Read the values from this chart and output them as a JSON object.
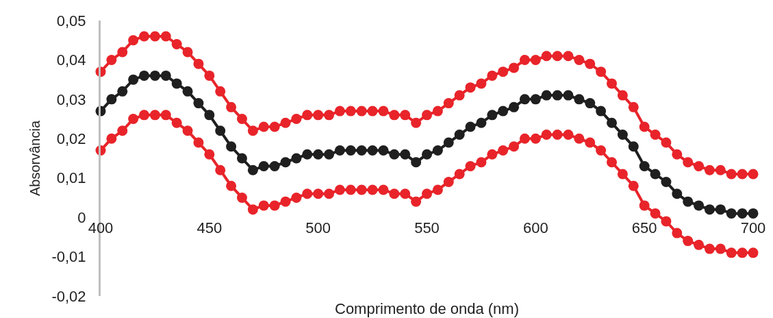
{
  "chart_data": {
    "type": "line",
    "xlabel": "Comprimento de onda (nm)",
    "ylabel": "Absorvância",
    "x": [
      400,
      405,
      410,
      415,
      420,
      425,
      430,
      435,
      440,
      445,
      450,
      455,
      460,
      465,
      470,
      475,
      480,
      485,
      490,
      495,
      500,
      505,
      510,
      515,
      520,
      525,
      530,
      535,
      540,
      545,
      550,
      555,
      560,
      565,
      570,
      575,
      580,
      585,
      590,
      595,
      600,
      605,
      610,
      615,
      620,
      625,
      630,
      635,
      640,
      645,
      650,
      655,
      660,
      665,
      670,
      675,
      680,
      685,
      690,
      695,
      700
    ],
    "series": [
      {
        "color": "#e8242a",
        "values": [
          0.037,
          0.04,
          0.042,
          0.045,
          0.046,
          0.046,
          0.046,
          0.044,
          0.042,
          0.039,
          0.036,
          0.032,
          0.028,
          0.025,
          0.022,
          0.023,
          0.023,
          0.024,
          0.025,
          0.026,
          0.026,
          0.026,
          0.027,
          0.027,
          0.027,
          0.027,
          0.027,
          0.026,
          0.026,
          0.024,
          0.026,
          0.027,
          0.029,
          0.031,
          0.033,
          0.034,
          0.036,
          0.037,
          0.038,
          0.04,
          0.04,
          0.041,
          0.041,
          0.041,
          0.04,
          0.039,
          0.037,
          0.034,
          0.031,
          0.028,
          0.023,
          0.021,
          0.019,
          0.016,
          0.014,
          0.013,
          0.012,
          0.012,
          0.011,
          0.011,
          0.011
        ]
      },
      {
        "color": "#1f1f1f",
        "values": [
          0.027,
          0.03,
          0.032,
          0.035,
          0.036,
          0.036,
          0.036,
          0.034,
          0.032,
          0.029,
          0.026,
          0.022,
          0.018,
          0.015,
          0.012,
          0.013,
          0.013,
          0.014,
          0.015,
          0.016,
          0.016,
          0.016,
          0.017,
          0.017,
          0.017,
          0.017,
          0.017,
          0.016,
          0.016,
          0.014,
          0.016,
          0.017,
          0.019,
          0.021,
          0.023,
          0.024,
          0.026,
          0.027,
          0.028,
          0.03,
          0.03,
          0.031,
          0.031,
          0.031,
          0.03,
          0.029,
          0.027,
          0.024,
          0.021,
          0.018,
          0.013,
          0.011,
          0.009,
          0.006,
          0.004,
          0.003,
          0.002,
          0.002,
          0.001,
          0.001,
          0.001
        ]
      },
      {
        "color": "#e8242a",
        "values": [
          0.017,
          0.02,
          0.022,
          0.025,
          0.026,
          0.026,
          0.026,
          0.024,
          0.022,
          0.019,
          0.016,
          0.012,
          0.008,
          0.005,
          0.002,
          0.003,
          0.003,
          0.004,
          0.005,
          0.006,
          0.006,
          0.006,
          0.007,
          0.007,
          0.007,
          0.007,
          0.007,
          0.006,
          0.006,
          0.004,
          0.006,
          0.007,
          0.009,
          0.011,
          0.013,
          0.014,
          0.016,
          0.017,
          0.018,
          0.02,
          0.02,
          0.021,
          0.021,
          0.021,
          0.02,
          0.019,
          0.017,
          0.014,
          0.011,
          0.008,
          0.003,
          0.001,
          -0.001,
          -0.004,
          -0.006,
          -0.007,
          -0.008,
          -0.008,
          -0.009,
          -0.009,
          -0.009
        ]
      }
    ],
    "xlim": [
      400,
      700
    ],
    "xticks": [
      400,
      450,
      500,
      550,
      600,
      650,
      700
    ],
    "ylim": [
      -0.02,
      0.05
    ],
    "yticks": [
      {
        "value": -0.02,
        "label": "-0,02"
      },
      {
        "value": -0.01,
        "label": "-0,01"
      },
      {
        "value": 0,
        "label": "0"
      },
      {
        "value": 0.01,
        "label": "0,01"
      },
      {
        "value": 0.02,
        "label": "0,02"
      },
      {
        "value": 0.03,
        "label": "0,03"
      },
      {
        "value": 0.04,
        "label": "0,04"
      },
      {
        "value": 0.05,
        "label": "0,05"
      }
    ],
    "marker": "circle",
    "line_style": "solid",
    "grid": false
  }
}
